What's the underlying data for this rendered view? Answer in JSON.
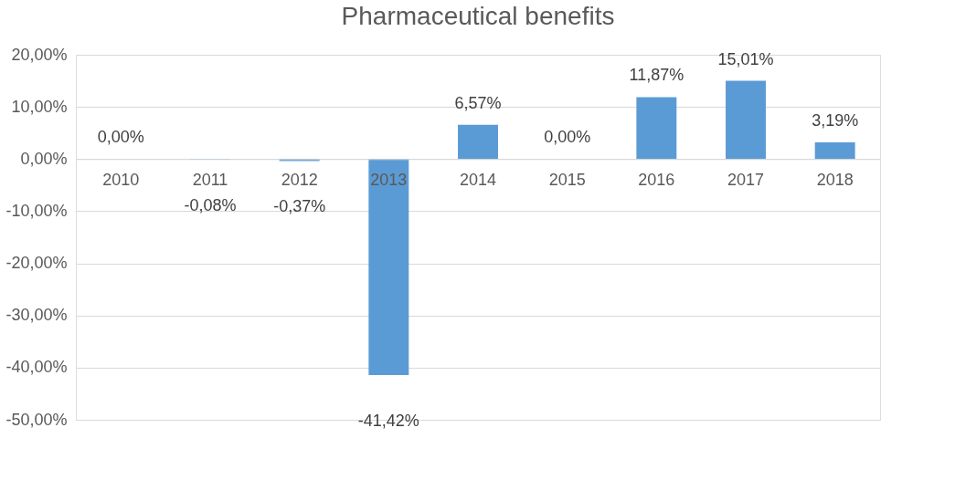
{
  "chart_data": {
    "type": "bar",
    "title": "Pharmaceutical benefits",
    "categories": [
      "2010",
      "2011",
      "2012",
      "2013",
      "2014",
      "2015",
      "2016",
      "2017",
      "2018"
    ],
    "values": [
      0,
      -0.08,
      -0.37,
      -41.42,
      6.57,
      0,
      11.87,
      15.01,
      3.19
    ],
    "value_labels": [
      "0,00%",
      "-0,08%",
      "-0,37%",
      "-41,42%",
      "6,57%",
      "0,00%",
      "11,87%",
      "15,01%",
      "3,19%"
    ],
    "color": "#5b9bd5",
    "ylim": [
      -50,
      20
    ],
    "yticks": [
      {
        "value": -50,
        "label": "-50,00%"
      },
      {
        "value": -40,
        "label": "-40,00%"
      },
      {
        "value": -30,
        "label": "-30,00%"
      },
      {
        "value": -20,
        "label": "-20,00%"
      },
      {
        "value": -10,
        "label": "-10,00%"
      },
      {
        "value": 0,
        "label": "0,00%"
      },
      {
        "value": 10,
        "label": "10,00%"
      },
      {
        "value": 20,
        "label": "20,00%"
      }
    ],
    "grid": "y"
  }
}
